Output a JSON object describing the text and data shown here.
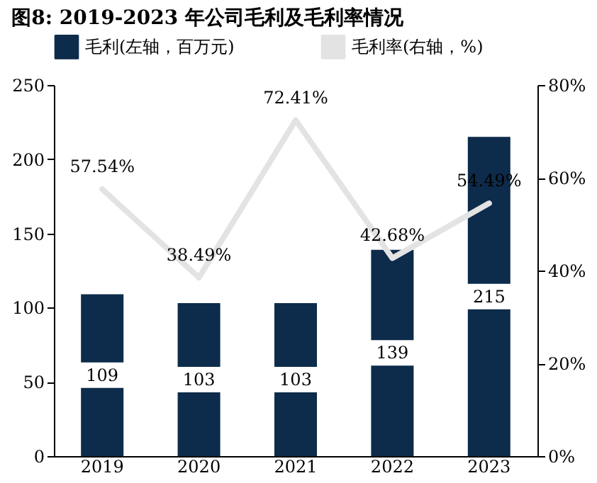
{
  "chart_data": {
    "type": "bar",
    "title": "图8: 2019-2023 年公司毛利及毛利率情况",
    "categories": [
      "2019",
      "2020",
      "2021",
      "2022",
      "2023"
    ],
    "series": [
      {
        "name": "毛利(左轴，百万元)",
        "color": "#0d2b4a",
        "values": [
          109,
          103,
          103,
          139,
          215
        ]
      },
      {
        "name": "毛利率(右轴，%)",
        "type": "line",
        "axis": "y2",
        "color": "#e3e3e3",
        "values": [
          57.54,
          38.49,
          72.41,
          42.68,
          54.49
        ],
        "value_labels": [
          "57.54%",
          "38.49%",
          "72.41%",
          "42.68%",
          "54.49%"
        ]
      }
    ],
    "ylim": [
      0,
      250
    ],
    "yticks": [
      0,
      50,
      100,
      150,
      200,
      250
    ],
    "y2lim": [
      0,
      80
    ],
    "y2ticks": [
      {
        "value": 0,
        "label": "0%"
      },
      {
        "value": 20,
        "label": "20%"
      },
      {
        "value": 40,
        "label": "40%"
      },
      {
        "value": 60,
        "label": "60%"
      },
      {
        "value": 80,
        "label": "80%"
      }
    ],
    "data_labels": true,
    "grid": false,
    "legend": "top"
  }
}
